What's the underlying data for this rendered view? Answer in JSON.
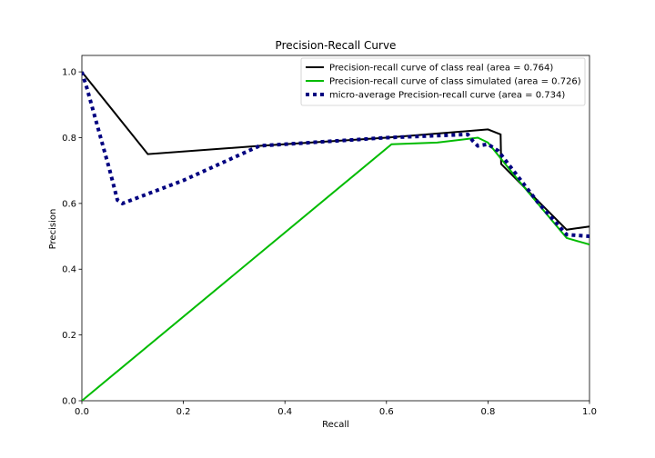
{
  "chart_data": {
    "type": "line",
    "title": "Precision-Recall Curve",
    "xlabel": "Recall",
    "ylabel": "Precision",
    "xlim": [
      0.0,
      1.0
    ],
    "ylim": [
      0.0,
      1.05
    ],
    "xticks": [
      "0.0",
      "0.2",
      "0.4",
      "0.6",
      "0.8",
      "1.0"
    ],
    "yticks": [
      "0.0",
      "0.2",
      "0.4",
      "0.6",
      "0.8",
      "1.0"
    ],
    "grid": false,
    "legend_position": "top-right",
    "series": [
      {
        "name": "Precision-recall curve of class real (area = 0.764)",
        "color": "#000000",
        "style": "solid",
        "points": [
          [
            0.0,
            1.0
          ],
          [
            0.13,
            0.75
          ],
          [
            0.35,
            0.775
          ],
          [
            0.6,
            0.8
          ],
          [
            0.8,
            0.825
          ],
          [
            0.825,
            0.81
          ],
          [
            0.826,
            0.72
          ],
          [
            0.955,
            0.52
          ],
          [
            1.0,
            0.53
          ]
        ]
      },
      {
        "name": "Precision-recall curve of class simulated (area = 0.726)",
        "color": "#00bb00",
        "style": "solid",
        "points": [
          [
            0.0,
            0.0
          ],
          [
            0.61,
            0.78
          ],
          [
            0.7,
            0.785
          ],
          [
            0.78,
            0.8
          ],
          [
            0.8,
            0.785
          ],
          [
            0.86,
            0.67
          ],
          [
            0.955,
            0.495
          ],
          [
            1.0,
            0.475
          ]
        ]
      },
      {
        "name": "micro-average Precision-recall curve (area = 0.734)",
        "color": "#000080",
        "style": "dotted",
        "points": [
          [
            0.0,
            1.0
          ],
          [
            0.01,
            0.95
          ],
          [
            0.055,
            0.7
          ],
          [
            0.07,
            0.61
          ],
          [
            0.08,
            0.6
          ],
          [
            0.2,
            0.67
          ],
          [
            0.35,
            0.775
          ],
          [
            0.6,
            0.8
          ],
          [
            0.76,
            0.81
          ],
          [
            0.77,
            0.79
          ],
          [
            0.78,
            0.775
          ],
          [
            0.8,
            0.78
          ],
          [
            0.82,
            0.76
          ],
          [
            0.9,
            0.6
          ],
          [
            0.955,
            0.505
          ],
          [
            1.0,
            0.5
          ]
        ]
      }
    ]
  }
}
